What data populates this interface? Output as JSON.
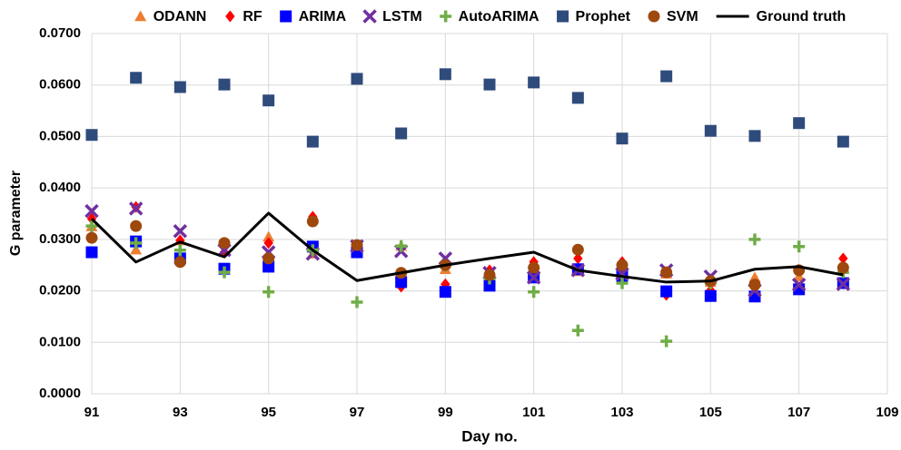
{
  "chart_data": {
    "type": "scatter",
    "x_label": "Day no.",
    "y_label": "G parameter",
    "x": [
      91,
      92,
      93,
      94,
      95,
      96,
      97,
      98,
      99,
      100,
      101,
      102,
      103,
      104,
      105,
      106,
      107,
      108
    ],
    "xlim": [
      91,
      109
    ],
    "xticks": [
      91,
      93,
      95,
      97,
      99,
      101,
      103,
      105,
      107,
      109
    ],
    "ylim": [
      0,
      0.07
    ],
    "yticks": [
      {
        "value": 0,
        "label": "0.0000"
      },
      {
        "value": 0.01,
        "label": "0.0100"
      },
      {
        "value": 0.02,
        "label": "0.0200"
      },
      {
        "value": 0.03,
        "label": "0.0300"
      },
      {
        "value": 0.04,
        "label": "0.0400"
      },
      {
        "value": 0.05,
        "label": "0.0500"
      },
      {
        "value": 0.06,
        "label": "0.0600"
      },
      {
        "value": 0.07,
        "label": "0.0700"
      }
    ],
    "grid": true,
    "legend": "top",
    "series": [
      {
        "name": "ODANN",
        "color": "#ed7d31",
        "marker": "triangle",
        "values": [
          0.0325,
          0.028,
          0.0298,
          0.0277,
          0.0305,
          0.0272,
          0.0277,
          0.0287,
          0.0242,
          0.0238,
          0.0252,
          0.0238,
          0.0233,
          0.0233,
          0.0217,
          0.0226,
          0.0228,
          0.0242
        ]
      },
      {
        "name": "RF",
        "color": "#ff0000",
        "marker": "diamond",
        "values": [
          0.034,
          0.0363,
          0.0298,
          0.0275,
          0.0293,
          0.0344,
          0.0275,
          0.0208,
          0.0213,
          0.024,
          0.0256,
          0.0263,
          0.0256,
          0.0192,
          0.0201,
          0.0205,
          0.024,
          0.0263
        ]
      },
      {
        "name": "ARIMA",
        "color": "#0000ff",
        "marker": "square",
        "values": [
          0.0275,
          0.0296,
          0.0263,
          0.0243,
          0.0247,
          0.0286,
          0.0275,
          0.0217,
          0.0198,
          0.021,
          0.0226,
          0.0242,
          0.0229,
          0.0199,
          0.019,
          0.0189,
          0.0203,
          0.0215
        ]
      },
      {
        "name": "LSTM",
        "color": "#7030a0",
        "marker": "x",
        "values": [
          0.0355,
          0.036,
          0.0316,
          0.0279,
          0.0275,
          0.0272,
          0.0287,
          0.0277,
          0.0263,
          0.0235,
          0.0226,
          0.024,
          0.0233,
          0.024,
          0.0228,
          0.0201,
          0.0212,
          0.0213
        ]
      },
      {
        "name": "AutoARIMA",
        "color": "#70ad47",
        "marker": "plus",
        "values": [
          0.0326,
          0.0293,
          0.0279,
          0.0236,
          0.0198,
          0.0279,
          0.0178,
          0.0287,
          0.0249,
          0.0224,
          0.0198,
          0.0123,
          0.0215,
          0.0102,
          0.0215,
          0.03,
          0.0286,
          0.0236
        ]
      },
      {
        "name": "Prophet",
        "color": "#2f4b7c",
        "marker": "square",
        "values": [
          0.0503,
          0.0614,
          0.0596,
          0.0601,
          0.057,
          0.049,
          0.0612,
          0.0506,
          0.0621,
          0.0601,
          0.0605,
          0.0575,
          0.0496,
          0.0617,
          0.0511,
          0.0501,
          0.0526,
          0.049
        ]
      },
      {
        "name": "SVM",
        "color": "#9e480e",
        "marker": "circle",
        "values": [
          0.0303,
          0.0326,
          0.0256,
          0.0293,
          0.0263,
          0.0335,
          0.0289,
          0.0235,
          0.025,
          0.0231,
          0.0245,
          0.028,
          0.025,
          0.0236,
          0.0219,
          0.0212,
          0.024,
          0.0245
        ]
      },
      {
        "name": "Ground truth",
        "color": "#000000",
        "marker": "line",
        "values": [
          0.034,
          0.0256,
          0.0295,
          0.0266,
          0.0351,
          0.0279,
          0.022,
          0.0235,
          0.025,
          0.0263,
          0.0275,
          0.024,
          0.0228,
          0.0217,
          0.0219,
          0.0242,
          0.0247,
          0.0231
        ]
      }
    ]
  }
}
